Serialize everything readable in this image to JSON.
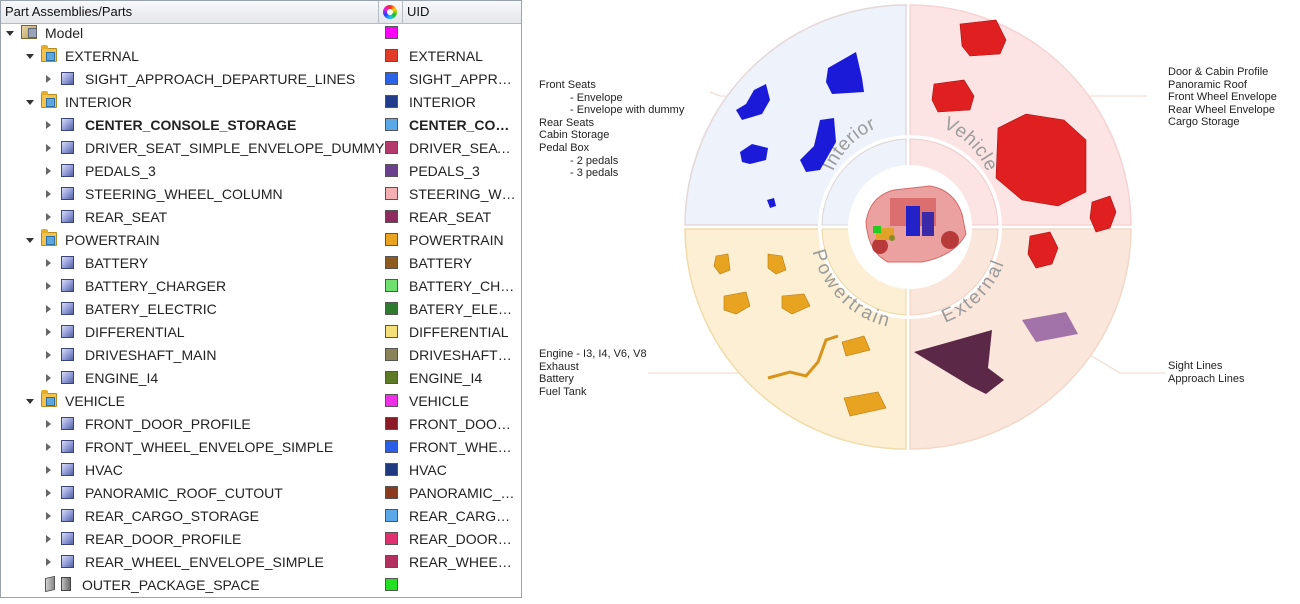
{
  "tree": {
    "header": {
      "col1": "Part Assemblies/Parts",
      "col2": "UID"
    },
    "rows": [
      {
        "label": "Model",
        "uid": "",
        "color": "#ff00ff",
        "level": 0,
        "icon": "model",
        "tw": "open",
        "bold": false
      },
      {
        "label": "EXTERNAL",
        "uid": "EXTERNAL",
        "color": "#e23b2a",
        "level": 1,
        "icon": "folder",
        "tw": "open",
        "bold": false
      },
      {
        "label": "SIGHT_APPROACH_DEPARTURE_LINES",
        "uid": "SIGHT_APPROACH_DEPARTURE_LINES",
        "color": "#2a63e8",
        "level": 2,
        "icon": "part",
        "tw": "closed",
        "bold": false
      },
      {
        "label": "INTERIOR",
        "uid": "INTERIOR",
        "color": "#1f3d8a",
        "level": 1,
        "icon": "folder",
        "tw": "open",
        "bold": false
      },
      {
        "label": "CENTER_CONSOLE_STORAGE",
        "uid": "CENTER_CONSOLE_STORAGE",
        "color": "#5aa8e8",
        "level": 2,
        "icon": "part",
        "tw": "closed",
        "bold": true
      },
      {
        "label": "DRIVER_SEAT_SIMPLE_ENVELOPE_DUMMY",
        "uid": "DRIVER_SEAT_SIMPLE_ENVELOPE_DUMMY",
        "color": "#b33a6a",
        "level": 2,
        "icon": "part",
        "tw": "closed",
        "bold": false
      },
      {
        "label": "PEDALS_3",
        "uid": "PEDALS_3",
        "color": "#6a3f8e",
        "level": 2,
        "icon": "part",
        "tw": "closed",
        "bold": false
      },
      {
        "label": "STEERING_WHEEL_COLUMN",
        "uid": "STEERING_WHEEL_COLUMN",
        "color": "#f4b0b0",
        "level": 2,
        "icon": "part",
        "tw": "closed",
        "bold": false
      },
      {
        "label": "REAR_SEAT",
        "uid": "REAR_SEAT",
        "color": "#8e2a5e",
        "level": 2,
        "icon": "part",
        "tw": "closed",
        "bold": false
      },
      {
        "label": "POWERTRAIN",
        "uid": "POWERTRAIN",
        "color": "#e8a420",
        "level": 1,
        "icon": "folder",
        "tw": "open",
        "bold": false
      },
      {
        "label": "BATTERY",
        "uid": "BATTERY",
        "color": "#8e5a1e",
        "level": 2,
        "icon": "part",
        "tw": "closed",
        "bold": false
      },
      {
        "label": "BATTERY_CHARGER",
        "uid": "BATTERY_CHARGER",
        "color": "#6ee06e",
        "level": 2,
        "icon": "part",
        "tw": "closed",
        "bold": false
      },
      {
        "label": "BATERY_ELECTRIC",
        "uid": "BATERY_ELECTRIC",
        "color": "#2e7a2e",
        "level": 2,
        "icon": "part",
        "tw": "closed",
        "bold": false
      },
      {
        "label": "DIFFERENTIAL",
        "uid": "DIFFERENTIAL",
        "color": "#f4e07a",
        "level": 2,
        "icon": "part",
        "tw": "closed",
        "bold": false
      },
      {
        "label": "DRIVESHAFT_MAIN",
        "uid": "DRIVESHAFT_MAIN",
        "color": "#8a8258",
        "level": 2,
        "icon": "part",
        "tw": "closed",
        "bold": false
      },
      {
        "label": "ENGINE_I4",
        "uid": "ENGINE_I4",
        "color": "#5f7a24",
        "level": 2,
        "icon": "part",
        "tw": "closed",
        "bold": false
      },
      {
        "label": "VEHICLE",
        "uid": "VEHICLE",
        "color": "#f030e8",
        "level": 1,
        "icon": "folder",
        "tw": "open",
        "bold": false
      },
      {
        "label": "FRONT_DOOR_PROFILE",
        "uid": "FRONT_DOOR_PROFILE",
        "color": "#8a1a24",
        "level": 2,
        "icon": "part",
        "tw": "closed",
        "bold": false
      },
      {
        "label": "FRONT_WHEEL_ENVELOPE_SIMPLE",
        "uid": "FRONT_WHEEL_ENVELOPE_SIMPLE",
        "color": "#2a5ee8",
        "level": 2,
        "icon": "part",
        "tw": "closed",
        "bold": false
      },
      {
        "label": "HVAC",
        "uid": "HVAC",
        "color": "#1f3a7e",
        "level": 2,
        "icon": "part",
        "tw": "closed",
        "bold": false
      },
      {
        "label": "PANORAMIC_ROOF_CUTOUT",
        "uid": "PANORAMIC_ROOF_CUTOUT",
        "color": "#8a3a1e",
        "level": 2,
        "icon": "part",
        "tw": "closed",
        "bold": false
      },
      {
        "label": "REAR_CARGO_STORAGE",
        "uid": "REAR_CARGO_STORAGE",
        "color": "#5aa8e8",
        "level": 2,
        "icon": "part",
        "tw": "closed",
        "bold": false
      },
      {
        "label": "REAR_DOOR_PROFILE",
        "uid": "REAR_DOOR_PROFILE",
        "color": "#e0306e",
        "level": 2,
        "icon": "part",
        "tw": "closed",
        "bold": false
      },
      {
        "label": "REAR_WHEEL_ENVELOPE_SIMPLE",
        "uid": "REAR_WHEEL_ENVELOPE_SIMPLE",
        "color": "#b3305e",
        "level": 2,
        "icon": "part",
        "tw": "closed",
        "bold": false
      },
      {
        "label": "OUTER_PACKAGE_SPACE",
        "uid": "",
        "color": "#22e022",
        "level": 1,
        "icon": "pkg",
        "tw": "none",
        "bold": false
      }
    ]
  },
  "diagram": {
    "segments": {
      "interior": {
        "label": "Interior",
        "fill": "#eef2fb"
      },
      "vehicle": {
        "label": "Vehicle",
        "fill": "#fde4e4"
      },
      "powertrain": {
        "label": "Powertrain",
        "fill": "#fcefd4"
      },
      "external": {
        "label": "External",
        "fill": "#fbe6dc"
      }
    },
    "annotations": {
      "interior": [
        "Front Seats",
        "- Envelope",
        "- Envelope with dummy",
        "Rear Seats",
        "Cabin Storage",
        "Pedal Box",
        "- 2 pedals",
        "- 3 pedals"
      ],
      "vehicle": [
        "Door & Cabin Profile",
        "Panoramic Roof",
        "Front Wheel Envelope",
        "Rear Wheel Envelope",
        "Cargo Storage"
      ],
      "powertrain": [
        "Engine - I3, I4, V6, V8",
        "Exhaust",
        "Battery",
        "Fuel Tank"
      ],
      "external": [
        "Sight Lines",
        "Approach Lines"
      ]
    }
  }
}
